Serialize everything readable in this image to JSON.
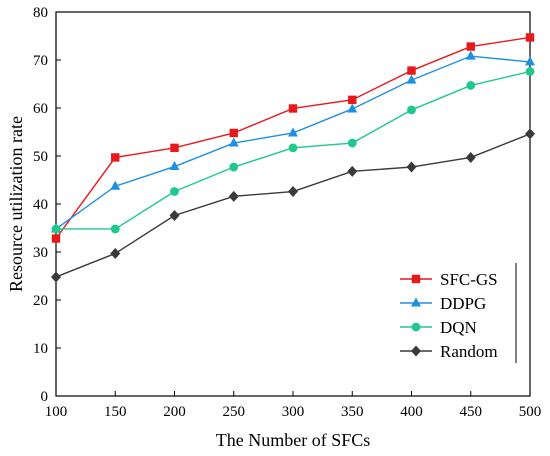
{
  "chart_data": {
    "type": "line",
    "title": "",
    "xlabel": "The Number of SFCs",
    "ylabel": "Resource utilization rate",
    "xlim": [
      100,
      500
    ],
    "ylim": [
      0,
      80
    ],
    "xticks": [
      100,
      150,
      200,
      250,
      300,
      350,
      400,
      450,
      500
    ],
    "yticks": [
      0,
      10,
      20,
      30,
      40,
      50,
      60,
      70,
      80
    ],
    "grid": false,
    "legend_position": "bottom-right",
    "x": [
      100,
      150,
      200,
      250,
      300,
      350,
      400,
      450,
      500
    ],
    "series": [
      {
        "name": "SFC-GS",
        "color": "#e8191b",
        "marker": "square",
        "values": [
          32.8,
          49.7,
          51.7,
          54.8,
          59.9,
          61.7,
          67.8,
          72.8,
          74.7
        ]
      },
      {
        "name": "DDPG",
        "color": "#1e90e0",
        "marker": "triangle",
        "values": [
          34.8,
          43.7,
          47.8,
          52.7,
          54.8,
          59.8,
          65.8,
          70.8,
          69.6
        ]
      },
      {
        "name": "DQN",
        "color": "#1ec98b",
        "marker": "circle",
        "values": [
          34.8,
          34.8,
          42.6,
          47.7,
          51.7,
          52.7,
          59.6,
          64.7,
          67.6
        ]
      },
      {
        "name": "Random",
        "color": "#3a3a3a",
        "marker": "diamond",
        "values": [
          24.8,
          29.7,
          37.6,
          41.6,
          42.6,
          46.8,
          47.7,
          49.7,
          54.6
        ]
      }
    ]
  }
}
